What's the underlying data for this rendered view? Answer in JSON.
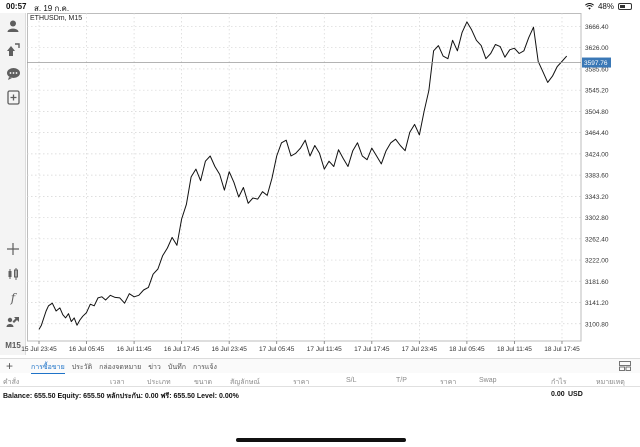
{
  "status_bar": {
    "time": "00:57",
    "date": "ส. 19 ก.ค.",
    "battery": "48%",
    "battery_level": 0.48
  },
  "toolbar": {
    "tools": [
      {
        "name": "account-icon"
      },
      {
        "name": "trade-icon"
      },
      {
        "name": "chat-icon"
      },
      {
        "name": "new-order-icon"
      },
      {
        "name": "crosshair-icon"
      },
      {
        "name": "indicators-icon"
      },
      {
        "name": "function-icon"
      },
      {
        "name": "objects-icon"
      }
    ],
    "timeframe": "M15"
  },
  "chart": {
    "symbol": "ETHUSDm, M15",
    "current_price": "3597.76",
    "colors": {
      "line": "#111111",
      "grid": "#d4d4d4",
      "price_tag": "#3a78b6",
      "price_line": "#9a9a9a"
    }
  },
  "chart_data": {
    "type": "line",
    "title": "ETHUSDm, M15",
    "xlabel": "",
    "ylabel": "",
    "ylim": [
      3068,
      3692
    ],
    "y_ticks": [
      "3666.40",
      "3626.00",
      "3585.60",
      "3545.20",
      "3504.80",
      "3464.40",
      "3424.00",
      "3383.60",
      "3343.20",
      "3302.80",
      "3262.40",
      "3222.00",
      "3181.60",
      "3141.20",
      "3100.80"
    ],
    "x_ticks": [
      "15 Jul 23:45",
      "16 Jul 05:45",
      "16 Jul 11:45",
      "16 Jul 17:45",
      "16 Jul 23:45",
      "17 Jul 05:45",
      "17 Jul 11:45",
      "17 Jul 17:45",
      "17 Jul 23:45",
      "18 Jul 05:45",
      "18 Jul 11:45",
      "18 Jul 17:45"
    ],
    "x_range": [
      0,
      11.4
    ],
    "grid": true,
    "series": [
      {
        "x": [
          0,
          0.05,
          0.1,
          0.15,
          0.2,
          0.28,
          0.36,
          0.44,
          0.5,
          0.56,
          0.62,
          0.68,
          0.74,
          0.8,
          0.86,
          0.92,
          1.0,
          1.08,
          1.16,
          1.24,
          1.32,
          1.4,
          1.5,
          1.6,
          1.7,
          1.8,
          1.9,
          2.0,
          2.1,
          2.2,
          2.3,
          2.4,
          2.5,
          2.6,
          2.7,
          2.8,
          2.9,
          3.0,
          3.1,
          3.2,
          3.3,
          3.4,
          3.5,
          3.6,
          3.7,
          3.8,
          3.9,
          4.0,
          4.1,
          4.2,
          4.3,
          4.4,
          4.5,
          4.6,
          4.7,
          4.8,
          4.9,
          5.0,
          5.1,
          5.2,
          5.3,
          5.4,
          5.5,
          5.6,
          5.7,
          5.8,
          5.9,
          6.0,
          6.1,
          6.2,
          6.3,
          6.4,
          6.5,
          6.6,
          6.7,
          6.8,
          6.9,
          7.0,
          7.1,
          7.2,
          7.3,
          7.4,
          7.5,
          7.6,
          7.7,
          7.8,
          7.9,
          8.0,
          8.1,
          8.2,
          8.3,
          8.4,
          8.5,
          8.6,
          8.7,
          8.8,
          8.9,
          9.0,
          9.1,
          9.2,
          9.3,
          9.4,
          9.5,
          9.6,
          9.7,
          9.8,
          9.9,
          10.0,
          10.1,
          10.2,
          10.3,
          10.4,
          10.5,
          10.6,
          10.7,
          10.8,
          10.9,
          11.0,
          11.1
        ],
        "y": [
          3090,
          3098,
          3112,
          3125,
          3135,
          3140,
          3125,
          3131,
          3118,
          3112,
          3120,
          3105,
          3112,
          3098,
          3108,
          3115,
          3122,
          3138,
          3135,
          3150,
          3152,
          3146,
          3155,
          3151,
          3150,
          3140,
          3158,
          3152,
          3155,
          3165,
          3170,
          3195,
          3205,
          3230,
          3245,
          3265,
          3250,
          3300,
          3328,
          3380,
          3395,
          3373,
          3410,
          3420,
          3400,
          3385,
          3355,
          3390,
          3370,
          3342,
          3360,
          3330,
          3340,
          3338,
          3352,
          3345,
          3378,
          3420,
          3445,
          3450,
          3420,
          3425,
          3435,
          3450,
          3420,
          3440,
          3425,
          3395,
          3410,
          3400,
          3432,
          3415,
          3400,
          3430,
          3445,
          3420,
          3413,
          3435,
          3420,
          3405,
          3430,
          3445,
          3452,
          3440,
          3430,
          3465,
          3480,
          3460,
          3505,
          3545,
          3620,
          3630,
          3610,
          3605,
          3640,
          3620,
          3655,
          3675,
          3660,
          3640,
          3630,
          3605,
          3615,
          3632,
          3628,
          3608,
          3622,
          3625,
          3615,
          3620,
          3645,
          3665,
          3600,
          3580,
          3560,
          3572,
          3590,
          3600,
          3610
        ]
      }
    ]
  },
  "terminal": {
    "tabs": [
      "การซื้อขาย",
      "ประวัติ",
      "กล่องจดหมาย",
      "ข่าว",
      "บันทึก",
      "การแจ้ง"
    ],
    "active_tab": "การซื้อขาย",
    "columns": [
      "คำสั่ง",
      "เวลา",
      "ประเภท",
      "ขนาด",
      "สัญลักษณ์",
      "ราคา",
      "S/L",
      "T/P",
      "ราคา",
      "Swap",
      "กำไร",
      "หมายเหตุ"
    ],
    "balance_line": "Balance: 655.50 Equity: 655.50 หลักประกัน: 0.00 ฟรี: 655.50 Level: 0.00%",
    "profit_total": "0.00",
    "currency": "USD"
  }
}
